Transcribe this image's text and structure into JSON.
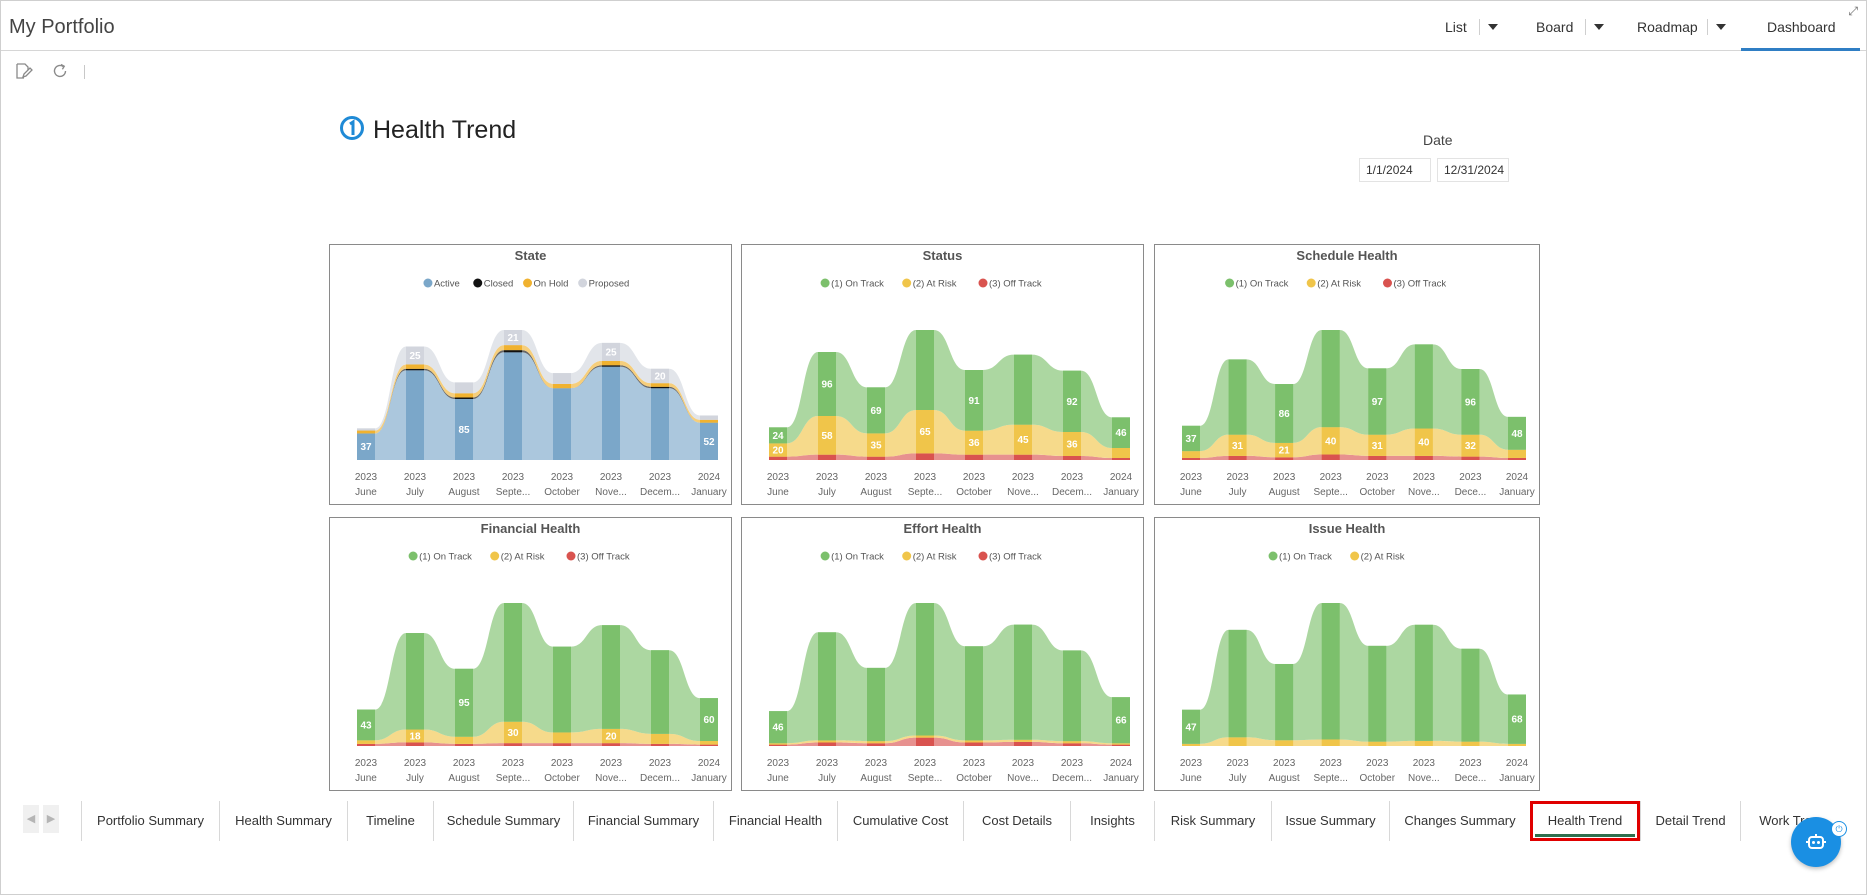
{
  "app": {
    "title": "My Portfolio",
    "nav": {
      "list": "List",
      "board": "Board",
      "roadmap": "Roadmap",
      "dashboard": "Dashboard"
    }
  },
  "dashboard": {
    "title": "Health Trend",
    "date_label": "Date",
    "date_from": "1/1/2024",
    "date_to": "12/31/2024"
  },
  "tabs": [
    "Portfolio Summary",
    "Health Summary",
    "Timeline",
    "Schedule Summary",
    "Financial Summary",
    "Financial Health",
    "Cumulative Cost",
    "Cost Details",
    "Insights",
    "Risk Summary",
    "Issue Summary",
    "Changes Summary",
    "Health Trend",
    "Detail Trend",
    "Work Tre"
  ],
  "active_tab": "Health Trend",
  "chart_data": [
    {
      "type": "area",
      "title": "State",
      "categories": [
        [
          "2023",
          "June"
        ],
        [
          "2023",
          "July"
        ],
        [
          "2023",
          "August"
        ],
        [
          "2023",
          "Septe..."
        ],
        [
          "2023",
          "October"
        ],
        [
          "2023",
          "Nove..."
        ],
        [
          "2023",
          "Decem..."
        ],
        [
          "2024",
          "January"
        ]
      ],
      "series": [
        {
          "name": "Active",
          "color": "#7ba7c9",
          "values": [
            37,
            125,
            85,
            150,
            100,
            130,
            100,
            52
          ],
          "labels": [
            "37",
            "",
            "85",
            "",
            "",
            "",
            "",
            "52"
          ]
        },
        {
          "name": "Closed",
          "color": "#111111",
          "values": [
            0,
            2,
            2,
            3,
            0,
            2,
            2,
            0
          ],
          "labels": [
            "",
            "",
            "",
            "",
            "",
            "",
            "",
            ""
          ]
        },
        {
          "name": "On Hold",
          "color": "#f0b230",
          "values": [
            4,
            6,
            6,
            7,
            6,
            6,
            5,
            4
          ],
          "labels": [
            "",
            "",
            "",
            "",
            "",
            "",
            "",
            ""
          ]
        },
        {
          "name": "Proposed",
          "color": "#d2d5dd",
          "values": [
            3,
            25,
            15,
            21,
            15,
            25,
            20,
            6
          ],
          "labels": [
            "",
            "25",
            "",
            "21",
            "",
            "25",
            "20",
            ""
          ]
        }
      ]
    },
    {
      "type": "area",
      "title": "Status",
      "categories": [
        [
          "2023",
          "June"
        ],
        [
          "2023",
          "July"
        ],
        [
          "2023",
          "August"
        ],
        [
          "2023",
          "Septe..."
        ],
        [
          "2023",
          "October"
        ],
        [
          "2023",
          "Nove..."
        ],
        [
          "2023",
          "Decem..."
        ],
        [
          "2024",
          "January"
        ]
      ],
      "series": [
        {
          "name": "(3) Off Track",
          "color": "#d9534f",
          "values": [
            5,
            8,
            5,
            10,
            8,
            8,
            6,
            3
          ],
          "labels": [
            "",
            "",
            "",
            "",
            "",
            "",
            "",
            ""
          ]
        },
        {
          "name": "(2) At Risk",
          "color": "#f0c54a",
          "values": [
            20,
            58,
            35,
            65,
            36,
            45,
            36,
            15
          ],
          "labels": [
            "20",
            "58",
            "35",
            "65",
            "36",
            "45",
            "36",
            ""
          ]
        },
        {
          "name": "(1) On Track",
          "color": "#7cc06c",
          "values": [
            24,
            96,
            69,
            120,
            91,
            105,
            92,
            46
          ],
          "labels": [
            "24",
            "96",
            "69",
            "",
            "91",
            "",
            "92",
            "46"
          ]
        }
      ]
    },
    {
      "type": "area",
      "title": "Schedule Health",
      "categories": [
        [
          "2023",
          "June"
        ],
        [
          "2023",
          "July"
        ],
        [
          "2023",
          "August"
        ],
        [
          "2023",
          "Septe..."
        ],
        [
          "2023",
          "October"
        ],
        [
          "2023",
          "Nove..."
        ],
        [
          "2023",
          "Dece..."
        ],
        [
          "2024",
          "January"
        ]
      ],
      "series": [
        {
          "name": "(3) Off Track",
          "color": "#d9534f",
          "values": [
            3,
            6,
            4,
            8,
            6,
            6,
            5,
            3
          ],
          "labels": [
            "",
            "",
            "",
            "",
            "",
            "",
            "",
            ""
          ]
        },
        {
          "name": "(2) At Risk",
          "color": "#f0c54a",
          "values": [
            10,
            31,
            21,
            40,
            31,
            40,
            32,
            12
          ],
          "labels": [
            "",
            "31",
            "21",
            "40",
            "31",
            "40",
            "32",
            ""
          ]
        },
        {
          "name": "(1) On Track",
          "color": "#7cc06c",
          "values": [
            37,
            110,
            86,
            142,
            97,
            123,
            96,
            48
          ],
          "labels": [
            "37",
            "",
            "86",
            "",
            "97",
            "",
            "96",
            "48"
          ]
        }
      ]
    },
    {
      "type": "area",
      "title": "Financial Health",
      "categories": [
        [
          "2023",
          "June"
        ],
        [
          "2023",
          "July"
        ],
        [
          "2023",
          "August"
        ],
        [
          "2023",
          "Septe..."
        ],
        [
          "2023",
          "October"
        ],
        [
          "2023",
          "Nove..."
        ],
        [
          "2023",
          "Decem..."
        ],
        [
          "2024",
          "January"
        ]
      ],
      "series": [
        {
          "name": "(3) Off Track",
          "color": "#d9534f",
          "values": [
            3,
            5,
            3,
            4,
            4,
            4,
            3,
            2
          ],
          "labels": [
            "",
            "",
            "",
            "",
            "",
            "",
            "",
            ""
          ]
        },
        {
          "name": "(2) At Risk",
          "color": "#f0c54a",
          "values": [
            5,
            18,
            10,
            30,
            15,
            20,
            14,
            5
          ],
          "labels": [
            "",
            "18",
            "",
            "30",
            "",
            "20",
            "",
            ""
          ]
        },
        {
          "name": "(1) On Track",
          "color": "#7cc06c",
          "values": [
            43,
            135,
            95,
            166,
            120,
            145,
            117,
            60
          ],
          "labels": [
            "43",
            "",
            "95",
            "",
            "",
            "",
            "",
            "60"
          ]
        }
      ]
    },
    {
      "type": "area",
      "title": "Effort Health",
      "categories": [
        [
          "2023",
          "June"
        ],
        [
          "2023",
          "July"
        ],
        [
          "2023",
          "August"
        ],
        [
          "2023",
          "Septe..."
        ],
        [
          "2023",
          "October"
        ],
        [
          "2023",
          "Nove..."
        ],
        [
          "2023",
          "Decem..."
        ],
        [
          "2024",
          "January"
        ]
      ],
      "series": [
        {
          "name": "(3) Off Track",
          "color": "#d9534f",
          "values": [
            2,
            5,
            4,
            12,
            5,
            6,
            4,
            2
          ],
          "labels": [
            "",
            "",
            "",
            "",
            "",
            "",
            "",
            ""
          ]
        },
        {
          "name": "(2) At Risk",
          "color": "#f0c54a",
          "values": [
            2,
            3,
            3,
            3,
            3,
            3,
            3,
            2
          ],
          "labels": [
            "",
            "",
            "",
            "",
            "",
            "",
            "",
            ""
          ]
        },
        {
          "name": "(1) On Track",
          "color": "#7cc06c",
          "values": [
            46,
            155,
            105,
            190,
            135,
            165,
            130,
            66
          ],
          "labels": [
            "46",
            "",
            "",
            "",
            "",
            "",
            "",
            "66"
          ]
        }
      ]
    },
    {
      "type": "area",
      "title": "Issue Health",
      "categories": [
        [
          "2023",
          "June"
        ],
        [
          "2023",
          "July"
        ],
        [
          "2023",
          "August"
        ],
        [
          "2023",
          "Septe..."
        ],
        [
          "2023",
          "October"
        ],
        [
          "2023",
          "Nove..."
        ],
        [
          "2023",
          "Dece..."
        ],
        [
          "2024",
          "January"
        ]
      ],
      "series": [
        {
          "name": "(2) At Risk",
          "color": "#f0c54a",
          "values": [
            3,
            12,
            8,
            9,
            6,
            7,
            6,
            3
          ],
          "labels": [
            "",
            "",
            "",
            "",
            "",
            "",
            "",
            ""
          ]
        },
        {
          "name": "(1) On Track",
          "color": "#7cc06c",
          "values": [
            47,
            148,
            105,
            188,
            132,
            160,
            128,
            68
          ],
          "labels": [
            "47",
            "",
            "",
            "",
            "",
            "",
            "",
            "68"
          ]
        }
      ]
    }
  ]
}
